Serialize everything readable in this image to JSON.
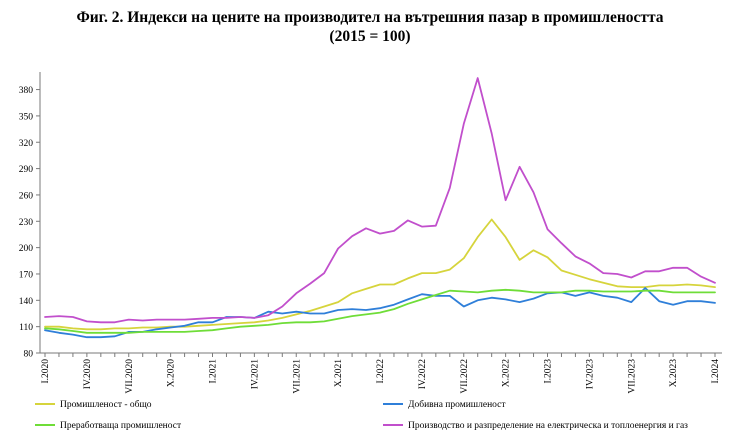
{
  "chart_data": {
    "type": "line",
    "title_line1": "Фиг. 2. Индекси на цените на производител на вътрешния пазар в промишлеността",
    "title_line2": "(2015 = 100)",
    "ylim": [
      80,
      400
    ],
    "yticks": [
      80,
      110,
      140,
      170,
      200,
      230,
      260,
      290,
      320,
      350,
      380
    ],
    "grid": false,
    "legend_position": "bottom",
    "xticks": [
      {
        "label": "I.2020",
        "index": 0
      },
      {
        "label": "IV.2020",
        "index": 3
      },
      {
        "label": "VII.2020",
        "index": 6
      },
      {
        "label": "X.2020",
        "index": 9
      },
      {
        "label": "I.2021",
        "index": 12
      },
      {
        "label": "IV.2021",
        "index": 15
      },
      {
        "label": "VII.2021",
        "index": 18
      },
      {
        "label": "X.2021",
        "index": 21
      },
      {
        "label": "I.2022",
        "index": 24
      },
      {
        "label": "IV.2022",
        "index": 27
      },
      {
        "label": "VII.2022",
        "index": 30
      },
      {
        "label": "X.2022",
        "index": 33
      },
      {
        "label": "I.2023",
        "index": 36
      },
      {
        "label": "IV.2023",
        "index": 39
      },
      {
        "label": "VII.2023",
        "index": 42
      },
      {
        "label": "X.2023",
        "index": 45
      },
      {
        "label": "I.2024",
        "index": 48
      }
    ],
    "series": [
      {
        "name": "Промишленост - общо",
        "color": "#d6d43c",
        "values": [
          110,
          110,
          108,
          107,
          107,
          108,
          108,
          109,
          109,
          110,
          110,
          111,
          112,
          113,
          114,
          115,
          117,
          120,
          124,
          128,
          133,
          138,
          148,
          153,
          158,
          158,
          165,
          171,
          171,
          175,
          188,
          212,
          232,
          212,
          186,
          197,
          189,
          174,
          169,
          164,
          160,
          156,
          155,
          155,
          157,
          157,
          158,
          157,
          155
        ]
      },
      {
        "name": "Добивна промишленост",
        "color": "#2f7fd9",
        "values": [
          106,
          103,
          101,
          98,
          98,
          99,
          104,
          104,
          107,
          109,
          111,
          115,
          115,
          121,
          121,
          120,
          127,
          125,
          127,
          125,
          125,
          129,
          130,
          129,
          131,
          135,
          141,
          147,
          145,
          145,
          133,
          140,
          143,
          141,
          138,
          142,
          148,
          149,
          145,
          149,
          145,
          143,
          138,
          154,
          139,
          135,
          139,
          139,
          137
        ]
      },
      {
        "name": "Преработваща промишленост",
        "color": "#6fdd38",
        "values": [
          108,
          107,
          105,
          103,
          103,
          103,
          103,
          104,
          104,
          104,
          104,
          105,
          106,
          108,
          110,
          111,
          112,
          114,
          115,
          115,
          116,
          119,
          122,
          124,
          126,
          130,
          136,
          141,
          146,
          151,
          150,
          149,
          151,
          152,
          151,
          149,
          149,
          149,
          151,
          151,
          150,
          150,
          150,
          151,
          151,
          149,
          149,
          149,
          149
        ]
      },
      {
        "name": "Производство и разпределение на електрическа и топлоенергия и газ",
        "color": "#c14fcc",
        "values": [
          121,
          122,
          121,
          116,
          115,
          115,
          118,
          117,
          118,
          118,
          118,
          119,
          120,
          120,
          121,
          120,
          123,
          133,
          148,
          159,
          171,
          199,
          213,
          222,
          216,
          219,
          231,
          224,
          225,
          268,
          341,
          393,
          330,
          254,
          292,
          263,
          221,
          205,
          190,
          182,
          171,
          170,
          166,
          173,
          173,
          177,
          177,
          167,
          160
        ]
      }
    ]
  }
}
